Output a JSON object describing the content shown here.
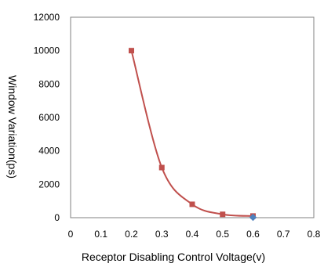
{
  "chart_data": {
    "type": "scatter",
    "title": "",
    "xlabel": "Receptor Disabling Control Voltage(v)",
    "ylabel": "Window Variation(ps)",
    "xlim": [
      0,
      0.8
    ],
    "ylim": [
      0,
      12000
    ],
    "xticks": [
      0,
      0.1,
      0.2,
      0.3,
      0.4,
      0.5,
      0.6,
      0.7,
      0.8
    ],
    "yticks": [
      0,
      2000,
      4000,
      6000,
      8000,
      10000,
      12000
    ],
    "grid": false,
    "legend": "none",
    "smooth_line": true,
    "series": [
      {
        "x": [
          0.2,
          0.3,
          0.4,
          0.5,
          0.6
        ],
        "y": [
          10000,
          3000,
          800,
          200,
          100
        ],
        "color": "#c0504d",
        "marker": "square"
      },
      {
        "x": [
          0.6
        ],
        "y": [
          20
        ],
        "color": "#4f81bd",
        "marker": "diamond"
      }
    ]
  }
}
